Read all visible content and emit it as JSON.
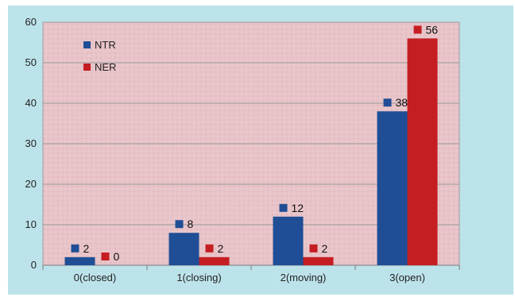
{
  "chart_data": {
    "type": "bar",
    "categories": [
      "0(closed)",
      "1(closing)",
      "2(moving)",
      "3(open)"
    ],
    "series": [
      {
        "name": "NTR",
        "color": "#1f4e96",
        "values": [
          2,
          8,
          12,
          38
        ]
      },
      {
        "name": "NER",
        "color": "#c41e22",
        "values": [
          0,
          2,
          2,
          56
        ]
      }
    ],
    "ylim": [
      0,
      60
    ],
    "yticks": [
      0,
      10,
      20,
      30,
      40,
      50,
      60
    ],
    "grid": true,
    "legend": "top-left",
    "data_labels": true,
    "plot_background": "#e8c4c9",
    "frame_color": "#bde3ea"
  }
}
